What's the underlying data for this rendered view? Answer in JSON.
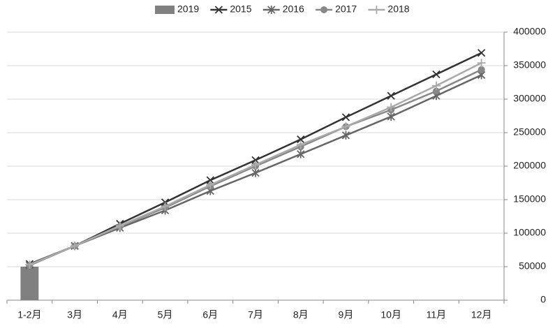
{
  "chart_data": {
    "type": "line",
    "categories": [
      "1-2月",
      "3月",
      "4月",
      "5月",
      "6月",
      "7月",
      "8月",
      "9月",
      "10月",
      "11月",
      "12月"
    ],
    "series": [
      {
        "name": "2019",
        "type": "bar",
        "color": "#808080",
        "values": [
          50000,
          null,
          null,
          null,
          null,
          null,
          null,
          null,
          null,
          null,
          null
        ]
      },
      {
        "name": "2015",
        "marker": "x",
        "color": "#333333",
        "values": [
          54000,
          81000,
          114000,
          146000,
          179000,
          209000,
          240000,
          273000,
          305000,
          337000,
          369000
        ]
      },
      {
        "name": "2016",
        "marker": "star",
        "color": "#666666",
        "values": [
          52000,
          81000,
          108000,
          134000,
          163000,
          190000,
          218000,
          246000,
          274000,
          305000,
          336000
        ]
      },
      {
        "name": "2017",
        "marker": "circle",
        "color": "#888888",
        "values": [
          52000,
          81000,
          110000,
          138000,
          170000,
          200000,
          229000,
          259000,
          284000,
          312000,
          344000
        ]
      },
      {
        "name": "2018",
        "marker": "plus",
        "color": "#aaaaaa",
        "values": [
          53000,
          81000,
          111000,
          140000,
          172000,
          202000,
          232000,
          259000,
          288000,
          320000,
          354000
        ]
      }
    ],
    "ylim": [
      0,
      400000
    ],
    "yticks": [
      0,
      50000,
      100000,
      150000,
      200000,
      250000,
      300000,
      350000,
      400000
    ],
    "grid": true,
    "legend": "top",
    "y_axis_side": "right"
  }
}
